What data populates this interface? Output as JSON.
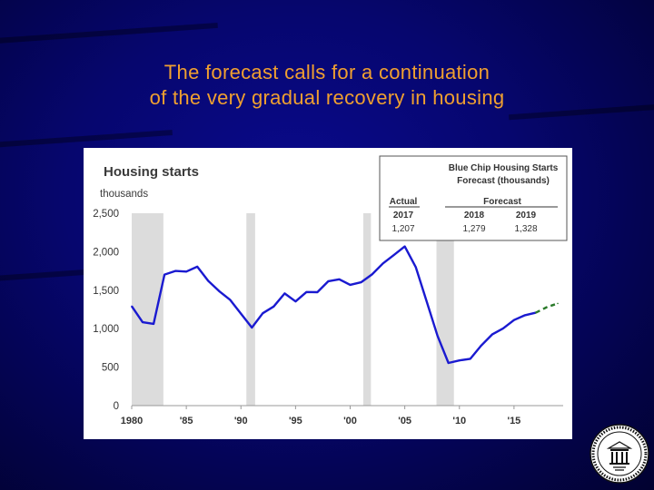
{
  "slide": {
    "title_line1": "The forecast calls for a continuation",
    "title_line2": "of the very gradual recovery in housing"
  },
  "colors": {
    "background": "#06066e",
    "title": "#f0a030",
    "actual_line": "#1a1ad0",
    "forecast_line": "#2a7a2a",
    "recession": "#dcdcdc"
  },
  "chart_data": {
    "type": "line",
    "title": "Housing starts",
    "ylabel": "thousands",
    "ylim": [
      0,
      2500
    ],
    "yticks": [
      "2,500",
      "2,000",
      "1,500",
      "1,000",
      "500",
      "0"
    ],
    "ytick_values": [
      2500,
      2000,
      1500,
      1000,
      500,
      0
    ],
    "xlim": [
      1980,
      2019.5
    ],
    "xticks": [
      "1980",
      "'85",
      "'90",
      "'95",
      "'00",
      "'05",
      "'10",
      "'15"
    ],
    "xtick_values": [
      1980,
      1985,
      1990,
      1995,
      2000,
      2005,
      2010,
      2015
    ],
    "recessions": [
      [
        1980,
        1982.9
      ],
      [
        1990.5,
        1991.3
      ],
      [
        2001.2,
        2001.9
      ],
      [
        2007.9,
        2009.5
      ]
    ],
    "series": [
      {
        "style": "solid",
        "x": [
          1980,
          1981,
          1982,
          1983,
          1984,
          1985,
          1986,
          1987,
          1988,
          1989,
          1990,
          1991,
          1992,
          1993,
          1994,
          1995,
          1996,
          1997,
          1998,
          1999,
          2000,
          2001,
          2002,
          2003,
          2004,
          2005,
          2006,
          2007,
          2008,
          2009,
          2010,
          2011,
          2012,
          2013,
          2014,
          2015,
          2016,
          2017
        ],
        "values": [
          1292,
          1084,
          1062,
          1703,
          1750,
          1742,
          1805,
          1621,
          1488,
          1376,
          1193,
          1014,
          1200,
          1288,
          1457,
          1354,
          1477,
          1474,
          1617,
          1641,
          1569,
          1603,
          1705,
          1848,
          1956,
          2068,
          1801,
          1355,
          906,
          554,
          587,
          609,
          781,
          925,
          1003,
          1112,
          1174,
          1207
        ]
      },
      {
        "style": "dashed",
        "x": [
          2017,
          2018,
          2019
        ],
        "values": [
          1207,
          1279,
          1328
        ]
      }
    ],
    "inset": {
      "title_line1": "Blue Chip Housing Starts",
      "title_line2": "Forecast (thousands)",
      "actual_header": "Actual",
      "forecast_header": "Forecast",
      "years": [
        "2017",
        "2018",
        "2019"
      ],
      "values": [
        "1,207",
        "1,279",
        "1,328"
      ]
    }
  }
}
